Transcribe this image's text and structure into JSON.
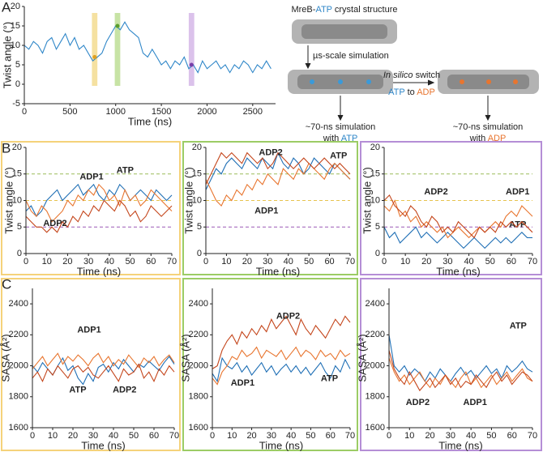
{
  "panels": [
    "A",
    "B",
    "C"
  ],
  "diagram": {
    "title": [
      "MreB-",
      "ATP",
      " crystal structure"
    ],
    "step": "µs-scale simulation",
    "switch": [
      "In silico",
      " switch"
    ],
    "swap": [
      "ATP",
      " to ",
      "ADP"
    ],
    "left": [
      "~70-ns simulation",
      "with ",
      "ATP"
    ],
    "right": [
      "~70-ns simulation",
      "with ",
      "ADP"
    ]
  },
  "chart_data": [
    {
      "type": "line",
      "xlabel": "Time (ns)",
      "ylabel": "Twist angle (°)",
      "xlim": [
        0,
        2750
      ],
      "ylim": [
        -5,
        20
      ],
      "xticks": [
        0,
        500,
        1000,
        1500,
        2000,
        2500
      ],
      "yticks": [
        -5,
        0,
        5,
        10,
        15,
        20
      ],
      "highlights": [
        {
          "x": [
            740,
            800
          ],
          "y": 7,
          "color": "#f3d98a",
          "dot": "#e0a020"
        },
        {
          "x": [
            990,
            1050
          ],
          "y": 15,
          "color": "#b9dc8f",
          "dot": "#5a9e2a"
        },
        {
          "x": [
            1800,
            1860
          ],
          "y": 5,
          "color": "#d2b3e6",
          "dot": "#7a3ea8"
        }
      ],
      "x": [
        0,
        50,
        100,
        150,
        200,
        250,
        300,
        350,
        400,
        450,
        500,
        550,
        600,
        650,
        700,
        750,
        800,
        850,
        900,
        950,
        1000,
        1050,
        1100,
        1150,
        1200,
        1250,
        1300,
        1350,
        1400,
        1450,
        1500,
        1550,
        1600,
        1650,
        1700,
        1750,
        1800,
        1850,
        1900,
        1950,
        2000,
        2050,
        2100,
        2150,
        2200,
        2250,
        2300,
        2350,
        2400,
        2450,
        2500,
        2550,
        2600,
        2650,
        2700
      ],
      "series": [
        {
          "color": "#2e86c8",
          "values": [
            10,
            9,
            11,
            10,
            8,
            11,
            12,
            9,
            11,
            13,
            10,
            12,
            9,
            10,
            8,
            6,
            7,
            8,
            11,
            13,
            15,
            14,
            16,
            14,
            13,
            12,
            8,
            7,
            9,
            7,
            5,
            6,
            4,
            6,
            5,
            7,
            4,
            5,
            3,
            6,
            4,
            5,
            6,
            4,
            5,
            3,
            5,
            4,
            6,
            5,
            3,
            5,
            4,
            6,
            4
          ]
        }
      ]
    },
    {
      "type": "line",
      "frame_color": "#f5d27a",
      "xlabel": "Time (ns)",
      "ylabel": "Twist angle (°)",
      "xlim": [
        0,
        70
      ],
      "ylim": [
        0,
        20
      ],
      "xticks": [
        0,
        10,
        20,
        30,
        40,
        50,
        60,
        70
      ],
      "yticks": [
        0,
        5,
        10,
        15,
        20
      ],
      "reference_lines": [
        {
          "value": 15,
          "color": "#9bbb59"
        },
        {
          "value": 10,
          "color": "#e6c34f"
        },
        {
          "value": 5,
          "color": "#9b59b6"
        }
      ],
      "x": [
        0,
        2.5,
        5,
        7.5,
        10,
        12.5,
        15,
        17.5,
        20,
        22.5,
        25,
        27.5,
        30,
        32.5,
        35,
        37.5,
        40,
        42.5,
        45,
        47.5,
        50,
        52.5,
        55,
        57.5,
        60,
        62.5,
        65,
        67.5,
        70
      ],
      "series": [
        {
          "name": "ATP",
          "color": "#1f6fb5",
          "values": [
            8,
            9,
            7,
            8,
            10,
            11,
            12,
            10,
            11,
            12,
            13,
            11,
            12,
            13,
            11,
            10,
            12,
            11,
            13,
            12,
            10,
            11,
            12,
            11,
            10,
            12,
            11,
            10,
            11
          ]
        },
        {
          "name": "ADP1",
          "color": "#e8752f",
          "values": [
            10,
            8,
            7,
            9,
            8,
            6,
            7,
            8,
            10,
            9,
            11,
            10,
            12,
            11,
            13,
            12,
            10,
            11,
            9,
            12,
            10,
            11,
            9,
            10,
            12,
            11,
            10,
            9,
            8
          ]
        },
        {
          "name": "ADP2",
          "color": "#c4461c",
          "values": [
            7,
            6,
            5,
            5,
            4,
            5,
            4,
            6,
            5,
            7,
            6,
            8,
            7,
            9,
            8,
            10,
            9,
            8,
            10,
            9,
            7,
            8,
            6,
            7,
            9,
            8,
            7,
            8,
            9
          ]
        }
      ]
    },
    {
      "type": "line",
      "frame_color": "#9ccc65",
      "xlabel": "Time (ns)",
      "ylabel": "Twist angle (°)",
      "xlim": [
        0,
        70
      ],
      "ylim": [
        0,
        20
      ],
      "xticks": [
        0,
        10,
        20,
        30,
        40,
        50,
        60,
        70
      ],
      "yticks": [
        0,
        5,
        10,
        15,
        20
      ],
      "reference_lines": [
        {
          "value": 15,
          "color": "#9bbb59"
        },
        {
          "value": 10,
          "color": "#e6c34f"
        },
        {
          "value": 5,
          "color": "#9b59b6"
        }
      ],
      "x": [
        0,
        2.5,
        5,
        7.5,
        10,
        12.5,
        15,
        17.5,
        20,
        22.5,
        25,
        27.5,
        30,
        32.5,
        35,
        37.5,
        40,
        42.5,
        45,
        47.5,
        50,
        52.5,
        55,
        57.5,
        60,
        62.5,
        65,
        67.5,
        70
      ],
      "series": [
        {
          "name": "ATP",
          "color": "#1f6fb5",
          "values": [
            12,
            14,
            16,
            15,
            17,
            18,
            17,
            16,
            18,
            17,
            16,
            18,
            17,
            16,
            19,
            17,
            16,
            18,
            17,
            15,
            16,
            18,
            17,
            16,
            15,
            17,
            16,
            15,
            14
          ]
        },
        {
          "name": "ADP1",
          "color": "#e8752f",
          "values": [
            14,
            12,
            10,
            9,
            11,
            10,
            12,
            11,
            13,
            12,
            14,
            13,
            15,
            14,
            13,
            16,
            15,
            14,
            16,
            15,
            17,
            16,
            15,
            14,
            16,
            17,
            16,
            15,
            14
          ]
        },
        {
          "name": "ADP2",
          "color": "#c4461c",
          "values": [
            13,
            15,
            17,
            19,
            18,
            19,
            18,
            17,
            19,
            18,
            17,
            18,
            16,
            17,
            19,
            18,
            17,
            16,
            17,
            18,
            17,
            16,
            17,
            18,
            17,
            16,
            17,
            16,
            15
          ]
        }
      ]
    },
    {
      "type": "line",
      "frame_color": "#b58ed6",
      "xlabel": "Time (ns)",
      "ylabel": "Twist angle (°)",
      "xlim": [
        0,
        70
      ],
      "ylim": [
        0,
        20
      ],
      "xticks": [
        0,
        10,
        20,
        30,
        40,
        50,
        60,
        70
      ],
      "yticks": [
        0,
        5,
        10,
        15,
        20
      ],
      "reference_lines": [
        {
          "value": 15,
          "color": "#9bbb59"
        },
        {
          "value": 10,
          "color": "#e6c34f"
        },
        {
          "value": 5,
          "color": "#9b59b6"
        }
      ],
      "x": [
        0,
        2.5,
        5,
        7.5,
        10,
        12.5,
        15,
        17.5,
        20,
        22.5,
        25,
        27.5,
        30,
        32.5,
        35,
        37.5,
        40,
        42.5,
        45,
        47.5,
        50,
        52.5,
        55,
        57.5,
        60,
        62.5,
        65,
        67.5,
        70
      ],
      "series": [
        {
          "name": "ATP",
          "color": "#1f6fb5",
          "values": [
            5,
            3,
            4,
            2,
            3,
            4,
            5,
            3,
            4,
            3,
            2,
            3,
            4,
            3,
            2,
            1,
            2,
            3,
            2,
            1,
            2,
            3,
            2,
            3,
            2,
            3,
            4,
            3,
            3
          ]
        },
        {
          "name": "ADP1",
          "color": "#e8752f",
          "values": [
            9,
            8,
            10,
            7,
            8,
            6,
            7,
            5,
            6,
            5,
            4,
            5,
            3,
            4,
            5,
            4,
            3,
            4,
            5,
            4,
            5,
            6,
            5,
            7,
            8,
            7,
            9,
            8,
            7
          ]
        },
        {
          "name": "ADP2",
          "color": "#c4461c",
          "values": [
            10,
            11,
            9,
            8,
            7,
            9,
            8,
            6,
            5,
            7,
            6,
            4,
            5,
            4,
            6,
            5,
            4,
            3,
            5,
            4,
            5,
            4,
            6,
            5,
            6,
            5,
            6,
            5,
            4
          ]
        }
      ]
    },
    {
      "type": "line",
      "frame_color": "#f5d27a",
      "xlabel": "Time (ns)",
      "ylabel": "SASA (Å²)",
      "xlim": [
        0,
        70
      ],
      "ylim": [
        1600,
        2500
      ],
      "xticks": [
        0,
        10,
        20,
        30,
        40,
        50,
        60,
        70
      ],
      "yticks": [
        1600,
        1800,
        2000,
        2200,
        2400
      ],
      "x": [
        0,
        2.5,
        5,
        7.5,
        10,
        12.5,
        15,
        17.5,
        20,
        22.5,
        25,
        27.5,
        30,
        32.5,
        35,
        37.5,
        40,
        42.5,
        45,
        47.5,
        50,
        52.5,
        55,
        57.5,
        60,
        62.5,
        65,
        67.5,
        70
      ],
      "series": [
        {
          "name": "ATP",
          "color": "#1f6fb5",
          "values": [
            2000,
            1960,
            2020,
            1980,
            1940,
            2000,
            2050,
            1970,
            2000,
            1920,
            1880,
            1950,
            1900,
            1990,
            2010,
            1960,
            2020,
            1980,
            2040,
            2000,
            1960,
            2010,
            1990,
            2030,
            2000,
            1970,
            2020,
            2060,
            2010
          ]
        },
        {
          "name": "ADP1",
          "color": "#e8752f",
          "values": [
            1980,
            2020,
            2060,
            2000,
            2040,
            2080,
            2010,
            2060,
            2030,
            2070,
            2040,
            2000,
            2050,
            2080,
            2020,
            2060,
            2000,
            2040,
            2010,
            2070,
            2030,
            1990,
            2050,
            2020,
            2060,
            2000,
            2040,
            2070,
            2020
          ]
        },
        {
          "name": "ADP2",
          "color": "#c4461c",
          "values": [
            1920,
            1960,
            1900,
            1980,
            1940,
            2000,
            1960,
            1920,
            1980,
            2000,
            1960,
            1990,
            1940,
            1920,
            1960,
            2000,
            1950,
            1900,
            1980,
            1940,
            1960,
            2010,
            1920,
            1960,
            1900,
            1980,
            1940,
            2000,
            1960
          ]
        }
      ]
    },
    {
      "type": "line",
      "frame_color": "#9ccc65",
      "xlabel": "Time (ns)",
      "ylabel": "SASA (Å²)",
      "xlim": [
        0,
        70
      ],
      "ylim": [
        1600,
        2500
      ],
      "xticks": [
        0,
        10,
        20,
        30,
        40,
        50,
        60,
        70
      ],
      "yticks": [
        1600,
        1800,
        2000,
        2200,
        2400
      ],
      "x": [
        0,
        2.5,
        5,
        7.5,
        10,
        12.5,
        15,
        17.5,
        20,
        22.5,
        25,
        27.5,
        30,
        32.5,
        35,
        37.5,
        40,
        42.5,
        45,
        47.5,
        50,
        52.5,
        55,
        57.5,
        60,
        62.5,
        65,
        67.5,
        70
      ],
      "series": [
        {
          "name": "ATP",
          "color": "#1f6fb5",
          "values": [
            1950,
            1900,
            2050,
            2000,
            1980,
            2020,
            1960,
            2000,
            1940,
            1980,
            2020,
            1960,
            2000,
            1940,
            1980,
            2010,
            1960,
            2000,
            1950,
            1990,
            1940,
            1980,
            2020,
            1960,
            1920,
            2000,
            1960,
            2040,
            1980
          ]
        },
        {
          "name": "ADP1",
          "color": "#e8752f",
          "values": [
            1920,
            1880,
            1960,
            2000,
            2060,
            2040,
            2100,
            2060,
            2080,
            2120,
            2050,
            2100,
            2080,
            2060,
            2100,
            2040,
            2080,
            2120,
            2060,
            2100,
            2080,
            2040,
            2100,
            2060,
            2080,
            2040,
            2100,
            2060,
            2080
          ]
        },
        {
          "name": "ADP2",
          "color": "#c4461c",
          "values": [
            1980,
            2000,
            2100,
            2160,
            2200,
            2140,
            2220,
            2180,
            2240,
            2200,
            2260,
            2220,
            2300,
            2240,
            2280,
            2320,
            2260,
            2200,
            2300,
            2240,
            2200,
            2260,
            2220,
            2180,
            2240,
            2300,
            2260,
            2320,
            2280
          ]
        }
      ]
    },
    {
      "type": "line",
      "frame_color": "#b58ed6",
      "xlabel": "Time (ns)",
      "ylabel": "SASA (Å²)",
      "xlim": [
        0,
        70
      ],
      "ylim": [
        1600,
        2500
      ],
      "xticks": [
        0,
        10,
        20,
        30,
        40,
        50,
        60,
        70
      ],
      "yticks": [
        1600,
        1800,
        2000,
        2200,
        2400
      ],
      "x": [
        0,
        2.5,
        5,
        7.5,
        10,
        12.5,
        15,
        17.5,
        20,
        22.5,
        25,
        27.5,
        30,
        32.5,
        35,
        37.5,
        40,
        42.5,
        45,
        47.5,
        50,
        52.5,
        55,
        57.5,
        60,
        62.5,
        65,
        67.5,
        70
      ],
      "series": [
        {
          "name": "ATP",
          "color": "#1f6fb5",
          "values": [
            2200,
            2000,
            1960,
            2000,
            1940,
            1980,
            1950,
            1900,
            1960,
            1920,
            1980,
            1940,
            1900,
            1950,
            1990,
            1940,
            1970,
            1920,
            1960,
            2000,
            1950,
            1980,
            1920,
            2000,
            1960,
            1990,
            2030,
            1980,
            1960
          ]
        },
        {
          "name": "ADP1",
          "color": "#e8752f",
          "values": [
            2050,
            1960,
            1900,
            1940,
            1880,
            1920,
            1960,
            1900,
            1860,
            1920,
            1880,
            1940,
            1900,
            1860,
            1920,
            1960,
            1880,
            1920,
            1860,
            1900,
            1940,
            1880,
            1920,
            1960,
            1900,
            1940,
            1980,
            1920,
            1900
          ]
        },
        {
          "name": "ADP2",
          "color": "#c4461c",
          "values": [
            2100,
            1980,
            1920,
            1880,
            1960,
            1900,
            1840,
            1880,
            1920,
            1860,
            1900,
            1940,
            1880,
            1920,
            1860,
            1900,
            1880,
            1940,
            1900,
            1860,
            1920,
            1960,
            1900,
            1940,
            1880,
            1920,
            1960,
            1940,
            1900
          ]
        }
      ]
    }
  ]
}
